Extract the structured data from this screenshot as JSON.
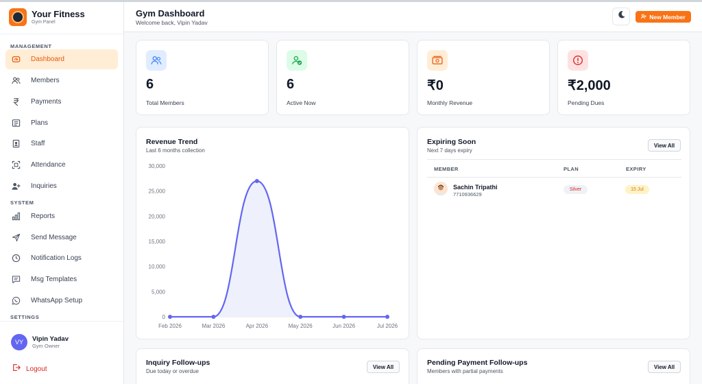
{
  "brand": {
    "name": "Your Fitness",
    "subtitle": "Gym Panel"
  },
  "sidebar": {
    "sections": {
      "management": "MANAGEMENT",
      "system": "SYSTEM",
      "settings": "SETTINGS"
    },
    "items": [
      {
        "label": "Dashboard",
        "icon": "dashboard-icon",
        "active": true
      },
      {
        "label": "Members",
        "icon": "users-icon"
      },
      {
        "label": "Payments",
        "icon": "rupee-icon"
      },
      {
        "label": "Plans",
        "icon": "list-icon"
      },
      {
        "label": "Staff",
        "icon": "id-badge-icon"
      },
      {
        "label": "Attendance",
        "icon": "scan-icon"
      },
      {
        "label": "Inquiries",
        "icon": "user-plus-icon"
      },
      {
        "label": "Reports",
        "icon": "bar-chart-icon"
      },
      {
        "label": "Send Message",
        "icon": "send-icon"
      },
      {
        "label": "Notification Logs",
        "icon": "clock-icon"
      },
      {
        "label": "Msg Templates",
        "icon": "message-icon"
      },
      {
        "label": "WhatsApp Setup",
        "icon": "whatsapp-icon"
      }
    ],
    "user": {
      "initials": "VY",
      "name": "Vipin Yadav",
      "role": "Gym Owner"
    },
    "logout_label": "Logout"
  },
  "header": {
    "title": "Gym Dashboard",
    "subtitle": "Welcome back, Vipin Yadav",
    "new_member_label": "New Member"
  },
  "stats": [
    {
      "value": "6",
      "label": "Total Members",
      "icon": "users-icon",
      "color": "#3b82f6",
      "bg": "#e0ecff"
    },
    {
      "value": "6",
      "label": "Active Now",
      "icon": "user-check-icon",
      "color": "#16a34a",
      "bg": "#dcfce7"
    },
    {
      "value": "₹0",
      "label": "Monthly Revenue",
      "icon": "cash-icon",
      "color": "#ea580c",
      "bg": "#ffedd5"
    },
    {
      "value": "₹2,000",
      "label": "Pending Dues",
      "icon": "alert-icon",
      "color": "#dc2626",
      "bg": "#fee2e2"
    }
  ],
  "revenue": {
    "title": "Revenue Trend",
    "subtitle": "Last 6 months collection"
  },
  "chart_data": {
    "type": "area",
    "categories": [
      "Feb 2026",
      "Mar 2026",
      "Apr 2026",
      "May 2026",
      "Jun 2026",
      "Jul 2026"
    ],
    "values": [
      0,
      0,
      27000,
      0,
      0,
      0
    ],
    "title": "Revenue Trend",
    "ylim": [
      0,
      30000
    ],
    "yticks": [
      "30,000",
      "25,000",
      "20,000",
      "15,000",
      "10,000",
      "5,000",
      "0"
    ],
    "grid": false,
    "line_color": "#6366f1",
    "fill_color": "#eef0fb"
  },
  "expiring": {
    "title": "Expiring Soon",
    "subtitle": "Next 7 days expiry",
    "view_all": "View All",
    "columns": [
      "MEMBER",
      "PLAN",
      "EXPIRY"
    ],
    "rows": [
      {
        "name": "Sachin Tripathi",
        "phone": "7710936629",
        "plan": "Silver",
        "expiry": "15 Jul"
      }
    ]
  },
  "inquiry": {
    "title": "Inquiry Follow-ups",
    "subtitle": "Due today or overdue",
    "view_all": "View All"
  },
  "pending": {
    "title": "Pending Payment Follow-ups",
    "subtitle": "Members with partial payments",
    "view_all": "View All"
  }
}
